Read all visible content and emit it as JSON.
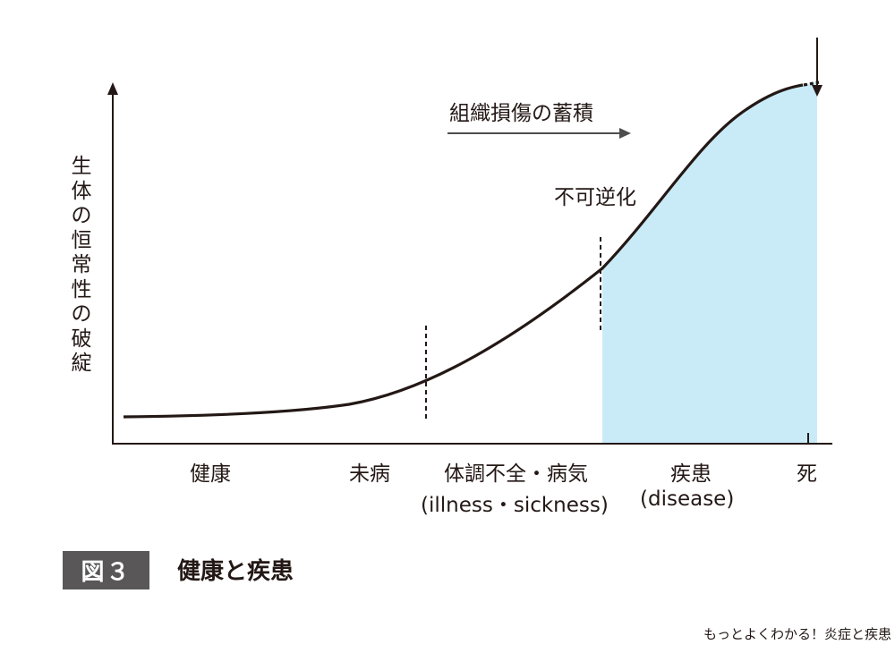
{
  "diagram": {
    "y_axis_label": "生体の恒常性の破綻",
    "stages": [
      {
        "label": "健康",
        "sublabel": ""
      },
      {
        "label": "未病",
        "sublabel": ""
      },
      {
        "label": "体調不全・病気",
        "sublabel": "(illness・sickness)"
      },
      {
        "label": "疾患",
        "sublabel": "(disease)"
      },
      {
        "label": "死",
        "sublabel": ""
      }
    ],
    "annotations": {
      "damage_accumulation": "組織損傷の蓄積",
      "irreversible": "不可逆化"
    },
    "colors": {
      "disease_region": "#c9ebf8",
      "curve": "#231815",
      "arrow": "#4d4d4d"
    }
  },
  "figure": {
    "number": "図３",
    "title": "健康と疾患"
  },
  "footer": {
    "source": "もっとよくわかる！炎症と疾患"
  }
}
